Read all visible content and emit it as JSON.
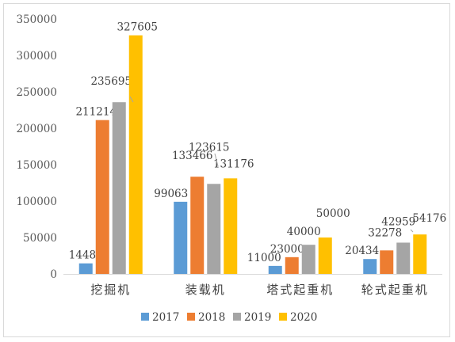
{
  "chart_data": {
    "type": "bar",
    "title": "",
    "xlabel": "",
    "ylabel": "",
    "ylim": [
      0,
      350000
    ],
    "yticks": [
      0,
      50000,
      100000,
      150000,
      200000,
      250000,
      300000,
      350000
    ],
    "ytick_labels": [
      "0",
      "50000",
      "100000",
      "150000",
      "200000",
      "250000",
      "300000",
      "350000"
    ],
    "grid": false,
    "legend_position": "bottom",
    "categories": [
      "挖掘机",
      "装载机",
      "塔式起重机",
      "轮式起重机"
    ],
    "series": [
      {
        "name": "2017",
        "color": "#5b9bd5",
        "values": [
          14487,
          99063,
          11000,
          20434
        ]
      },
      {
        "name": "2018",
        "color": "#ed7d31",
        "values": [
          211214,
          133466,
          23000,
          32278
        ]
      },
      {
        "name": "2019",
        "color": "#a5a5a5",
        "values": [
          235695,
          123615,
          40000,
          42959
        ]
      },
      {
        "name": "2020",
        "color": "#ffc000",
        "values": [
          327605,
          131176,
          50000,
          54176
        ]
      }
    ],
    "data_labels": [
      [
        "14487",
        "211214",
        "235695",
        "327605"
      ],
      [
        "99063",
        "133466",
        "123615",
        "131176"
      ],
      [
        "11000",
        "23000",
        "40000",
        "50000"
      ],
      [
        "20434",
        "32278",
        "42959",
        "54176"
      ]
    ]
  }
}
